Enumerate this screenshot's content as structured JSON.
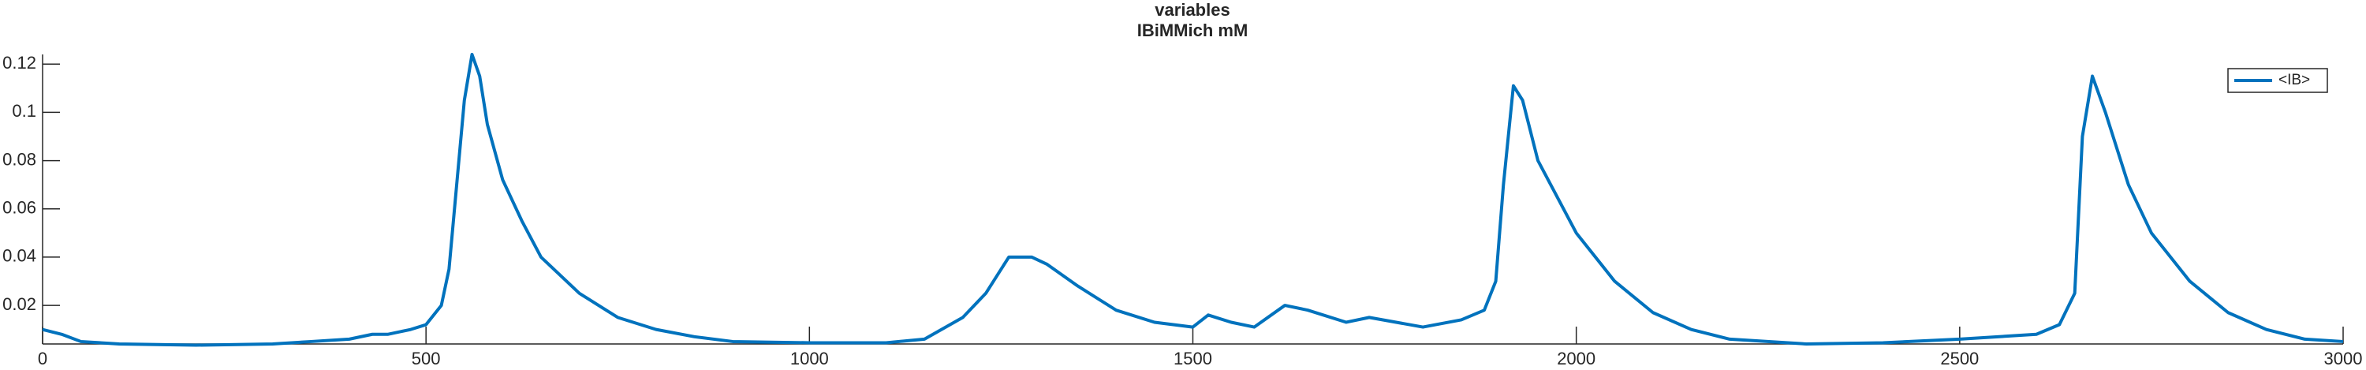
{
  "chart_data": {
    "type": "line",
    "title": "variables",
    "subtitle": "IBiMMich mM",
    "x": [
      0,
      25,
      50,
      100,
      200,
      300,
      350,
      400,
      430,
      450,
      480,
      500,
      520,
      530,
      540,
      550,
      560,
      570,
      580,
      600,
      625,
      650,
      700,
      750,
      800,
      850,
      900,
      1000,
      1100,
      1150,
      1200,
      1230,
      1260,
      1290,
      1310,
      1350,
      1400,
      1450,
      1500,
      1520,
      1550,
      1580,
      1620,
      1650,
      1700,
      1730,
      1800,
      1850,
      1880,
      1895,
      1905,
      1918,
      1930,
      1950,
      2000,
      2050,
      2100,
      2150,
      2200,
      2300,
      2400,
      2500,
      2600,
      2630,
      2650,
      2660,
      2673,
      2690,
      2720,
      2750,
      2800,
      2850,
      2900,
      2950,
      3000
    ],
    "series": [
      {
        "name": "<IB>",
        "color": "#0072bd",
        "values": [
          0.01,
          0.008,
          0.005,
          0.004,
          0.0035,
          0.004,
          0.005,
          0.006,
          0.008,
          0.008,
          0.01,
          0.012,
          0.02,
          0.035,
          0.07,
          0.105,
          0.124,
          0.115,
          0.095,
          0.072,
          0.055,
          0.04,
          0.025,
          0.015,
          0.01,
          0.007,
          0.005,
          0.0045,
          0.0045,
          0.006,
          0.015,
          0.025,
          0.04,
          0.04,
          0.037,
          0.028,
          0.018,
          0.013,
          0.011,
          0.016,
          0.013,
          0.011,
          0.02,
          0.018,
          0.013,
          0.015,
          0.011,
          0.014,
          0.018,
          0.03,
          0.07,
          0.111,
          0.105,
          0.08,
          0.05,
          0.03,
          0.017,
          0.01,
          0.006,
          0.004,
          0.0045,
          0.006,
          0.008,
          0.012,
          0.025,
          0.09,
          0.115,
          0.1,
          0.07,
          0.05,
          0.03,
          0.017,
          0.01,
          0.006,
          0.005
        ]
      }
    ],
    "xlim": [
      0,
      3000
    ],
    "xticks": [
      0,
      500,
      1000,
      1500,
      2000,
      2500,
      3000
    ],
    "ylim": [
      0.004,
      0.124
    ],
    "yticks": [
      0.02,
      0.04,
      0.06,
      0.08,
      0.1,
      0.12
    ],
    "legend": "northeast"
  }
}
